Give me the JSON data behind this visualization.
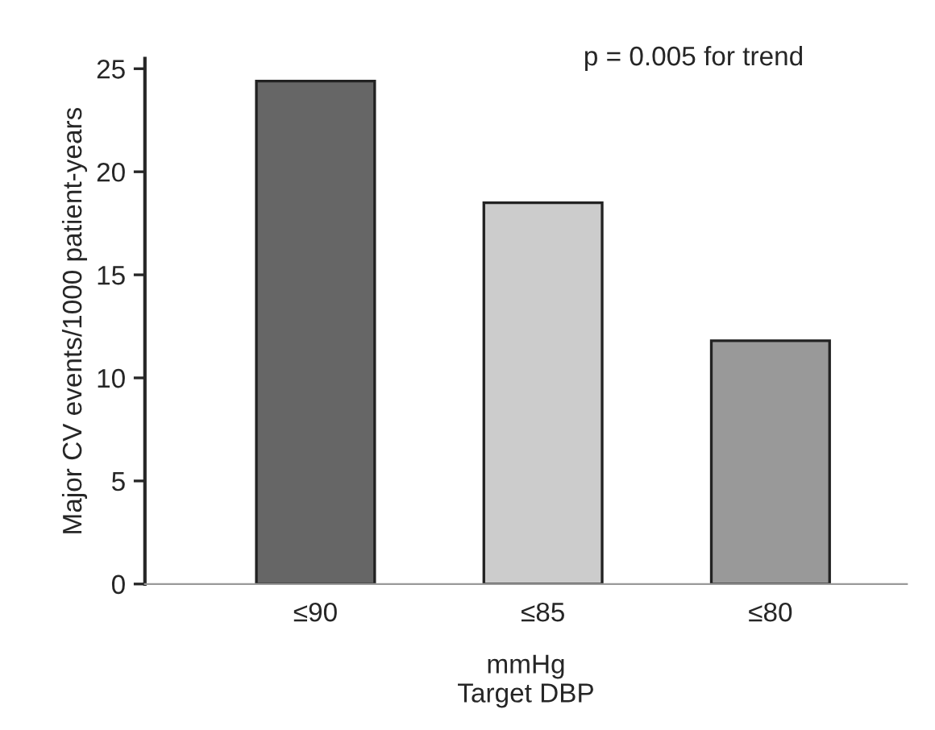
{
  "chart_data": {
    "type": "bar",
    "categories": [
      "≤90",
      "≤85",
      "≤80"
    ],
    "values": [
      24.4,
      18.5,
      11.8
    ],
    "colors": [
      "#666666",
      "#cccccc",
      "#999999"
    ],
    "xlabel": "mmHg\nTarget DBP",
    "ylabel": "Major CV events/1000 patient-years",
    "ylim": [
      0,
      25.5
    ],
    "yticks": [
      0,
      5,
      10,
      15,
      20,
      25
    ],
    "annotations": [
      "p = 0.005 for trend"
    ],
    "grid": false,
    "legend": false
  }
}
